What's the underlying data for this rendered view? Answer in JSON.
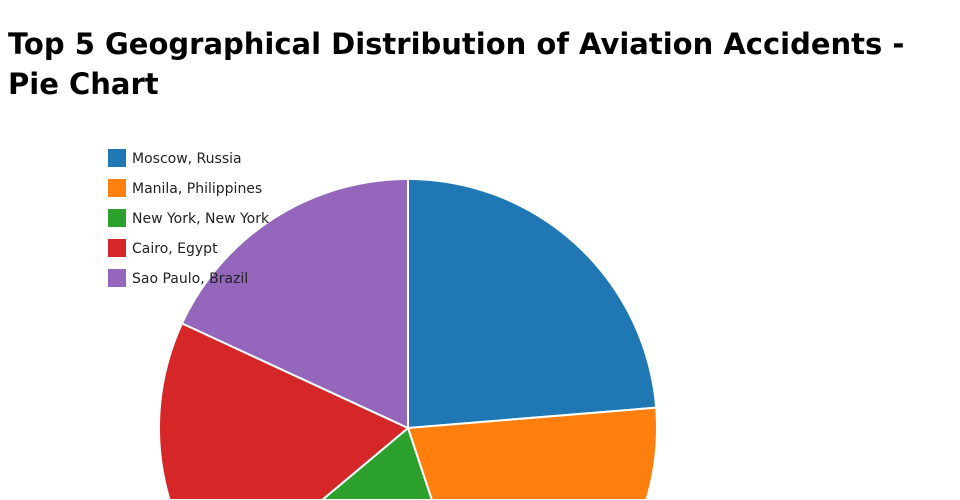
{
  "chart_data": {
    "type": "pie",
    "title": "Top 5 Geographical Distribution of Aviation Accidents - Pie Chart",
    "labels": [
      "Moscow, Russia",
      "Manila, Philippines",
      "New York, New York",
      "Cairo, Egypt",
      "Sao Paulo, Brazil"
    ],
    "values": [
      23.7,
      21.2,
      19.0,
      18.0,
      18.1
    ],
    "unit": "percent (estimated)",
    "colors": [
      "#1f77b4",
      "#ff7f0e",
      "#2ca02c",
      "#d62728",
      "#9467bd"
    ],
    "direction": "clockwise",
    "start_angle": "12 o'clock",
    "legend_position": "top-left"
  }
}
